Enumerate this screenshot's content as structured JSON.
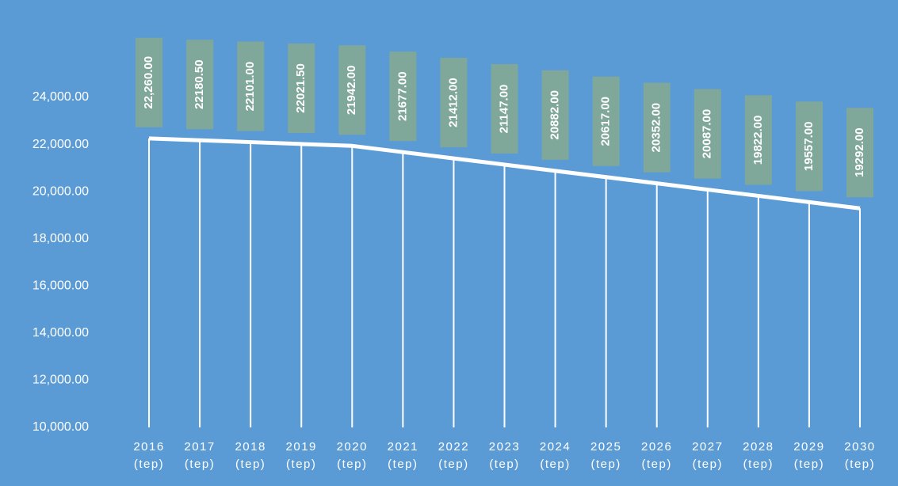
{
  "chart_data": {
    "type": "line",
    "categories": [
      "2016 (tep)",
      "2017 (tep)",
      "2018 (tep)",
      "2019 (tep)",
      "2020 (tep)",
      "2021 (tep)",
      "2022 (tep)",
      "2023 (tep)",
      "2024 (tep)",
      "2025 (tep)",
      "2026 (tep)",
      "2027 (tep)",
      "2028 (tep)",
      "2029 (tep)",
      "2030 (tep)"
    ],
    "values": [
      22260,
      22180.5,
      22101,
      22021.5,
      21942,
      21677,
      21412,
      21147,
      20882,
      20617,
      20352,
      20087,
      19822,
      19557,
      19292
    ],
    "value_labels": [
      "22,260.00",
      "22180.50",
      "22101.00",
      "22021.50",
      "21942.00",
      "21677.00",
      "21412.00",
      "21147.00",
      "20882.00",
      "20617.00",
      "20352.00",
      "20087.00",
      "19822.00",
      "19557.00",
      "19292.00"
    ],
    "color": "#ffffff",
    "label_color": "#7fa89a",
    "ylim": [
      10000,
      24000
    ],
    "yticks": [
      {
        "value": 10000,
        "label": "10,000.00"
      },
      {
        "value": 12000,
        "label": "12,000.00"
      },
      {
        "value": 14000,
        "label": "14,000.00"
      },
      {
        "value": 16000,
        "label": "16,000.00"
      },
      {
        "value": 18000,
        "label": "18,000.00"
      },
      {
        "value": 20000,
        "label": "20,000.00"
      },
      {
        "value": 22000,
        "label": "22,000.00"
      },
      {
        "value": 24000,
        "label": "24,000.00"
      }
    ],
    "grid": false
  }
}
